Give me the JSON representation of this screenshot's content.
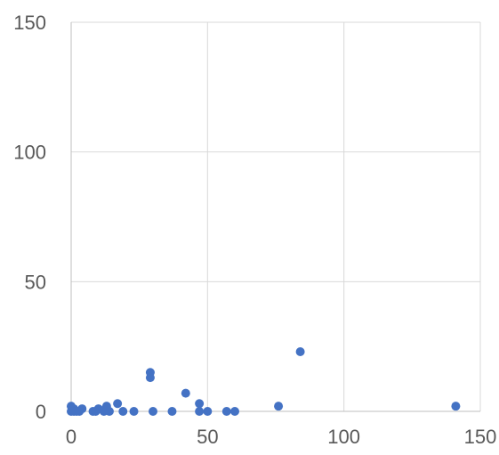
{
  "chart_data": {
    "type": "scatter",
    "title": "",
    "xlabel": "",
    "ylabel": "",
    "xlim": [
      0,
      150
    ],
    "ylim": [
      0,
      150
    ],
    "x_ticks": [
      0,
      50,
      100,
      150
    ],
    "y_ticks": [
      0,
      50,
      100,
      150
    ],
    "grid": true,
    "marker_color": "#4472c4",
    "series": [
      {
        "points": [
          {
            "x": 0,
            "y": 2
          },
          {
            "x": 0,
            "y": 0
          },
          {
            "x": 1,
            "y": 1
          },
          {
            "x": 1,
            "y": 0
          },
          {
            "x": 2,
            "y": 0
          },
          {
            "x": 3,
            "y": 0
          },
          {
            "x": 4,
            "y": 1
          },
          {
            "x": 8,
            "y": 0
          },
          {
            "x": 9,
            "y": 0
          },
          {
            "x": 10,
            "y": 1
          },
          {
            "x": 12,
            "y": 0
          },
          {
            "x": 13,
            "y": 2
          },
          {
            "x": 14,
            "y": 0
          },
          {
            "x": 17,
            "y": 3
          },
          {
            "x": 19,
            "y": 0
          },
          {
            "x": 23,
            "y": 0
          },
          {
            "x": 29,
            "y": 15
          },
          {
            "x": 29,
            "y": 13
          },
          {
            "x": 30,
            "y": 0
          },
          {
            "x": 37,
            "y": 0
          },
          {
            "x": 42,
            "y": 7
          },
          {
            "x": 47,
            "y": 3
          },
          {
            "x": 47,
            "y": 0
          },
          {
            "x": 50,
            "y": 0
          },
          {
            "x": 57,
            "y": 0
          },
          {
            "x": 60,
            "y": 0
          },
          {
            "x": 76,
            "y": 2
          },
          {
            "x": 84,
            "y": 23
          },
          {
            "x": 141,
            "y": 2
          }
        ]
      }
    ]
  }
}
